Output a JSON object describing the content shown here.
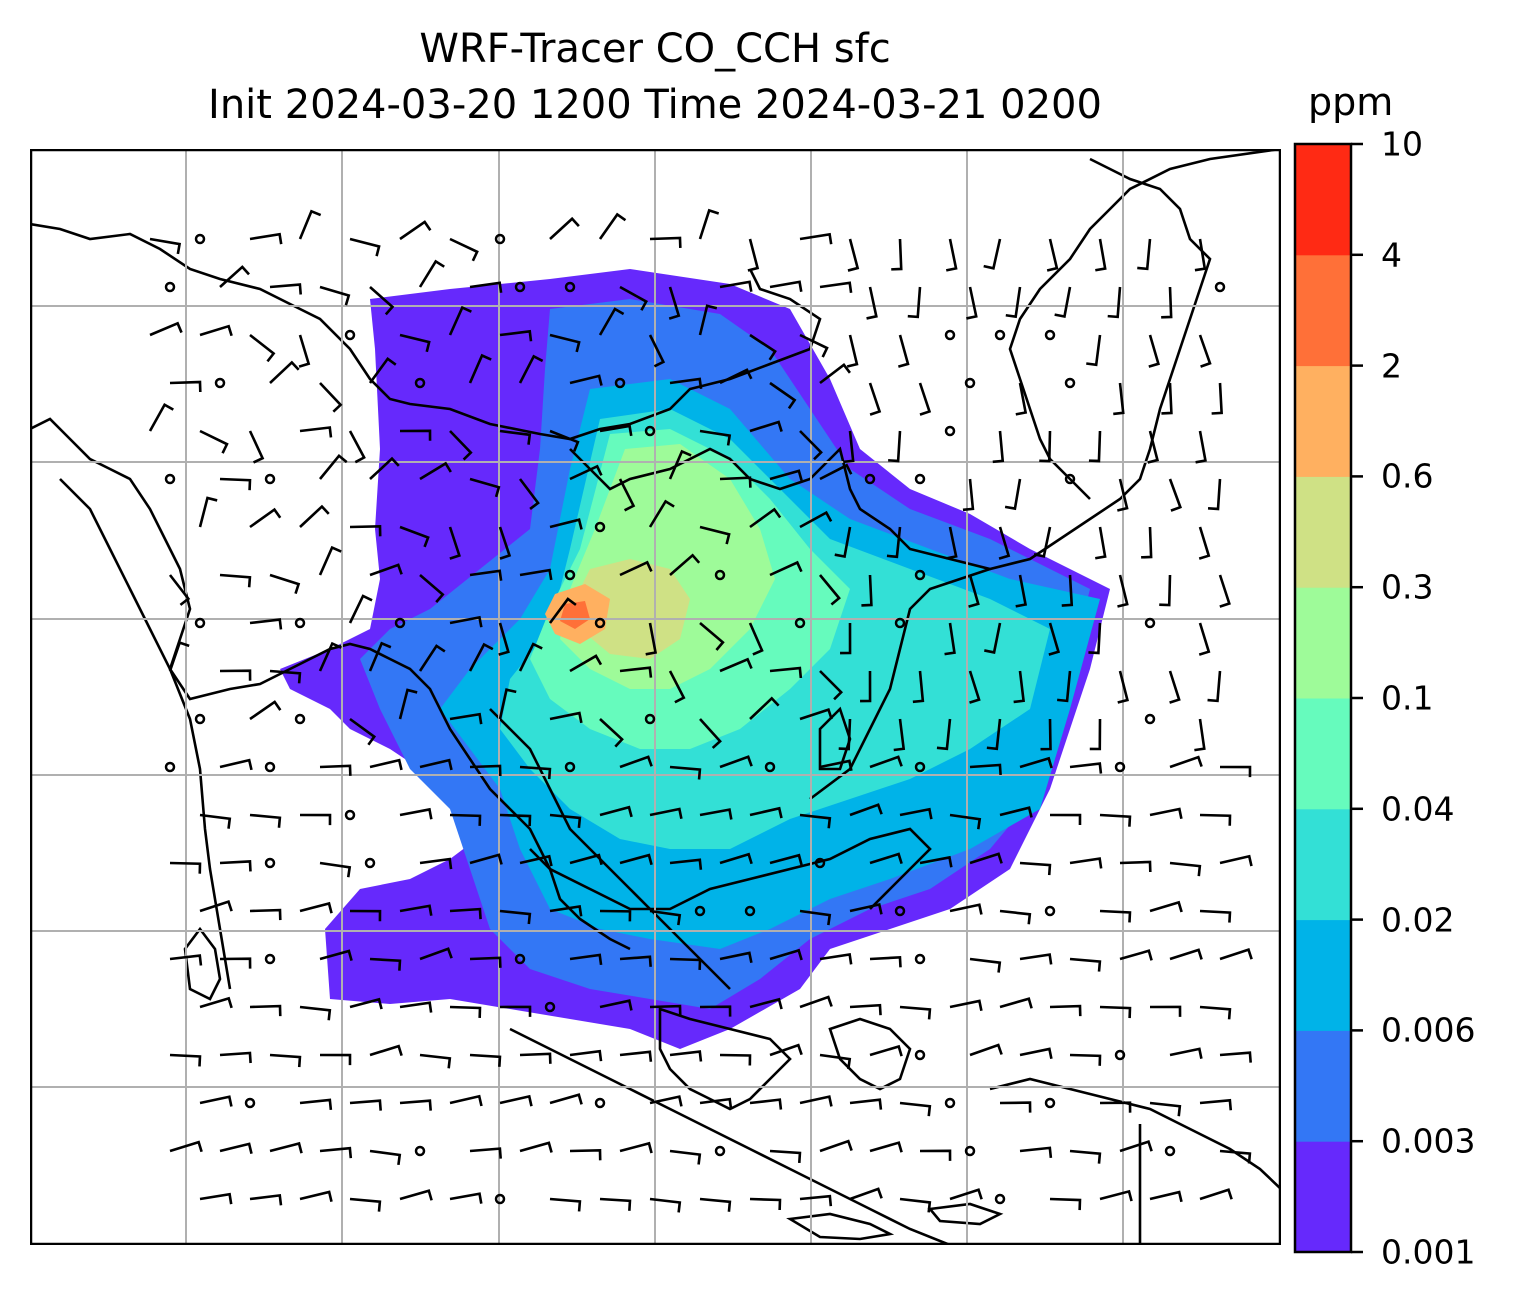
{
  "title": {
    "line1": "WRF-Tracer CO_CCH sfc",
    "line2": "Init 2024-03-20 1200 Time 2024-03-21 0200"
  },
  "colorbar": {
    "unit": "ppm",
    "levels": [
      "0.001",
      "0.003",
      "0.006",
      "0.02",
      "0.04",
      "0.1",
      "0.3",
      "0.6",
      "2",
      "4",
      "10"
    ],
    "colors": [
      "#6629fc",
      "#3377f5",
      "#00b3e8",
      "#33e0d6",
      "#66fbbd",
      "#9efb99",
      "#cfe185",
      "#ffb060",
      "#ff7038",
      "#ff2a14"
    ]
  },
  "map": {
    "gridlines": true,
    "coastline_color": "#000000",
    "gridline_color": "#b0b0b0"
  }
}
